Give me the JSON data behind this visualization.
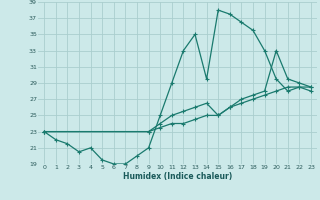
{
  "xlabel": "Humidex (Indice chaleur)",
  "bg_color": "#cce9e9",
  "grid_color": "#aacece",
  "line_color": "#1a7a6e",
  "xlim": [
    -0.5,
    23.5
  ],
  "ylim": [
    19,
    39
  ],
  "xticks": [
    0,
    1,
    2,
    3,
    4,
    5,
    6,
    7,
    8,
    9,
    10,
    11,
    12,
    13,
    14,
    15,
    16,
    17,
    18,
    19,
    20,
    21,
    22,
    23
  ],
  "yticks": [
    19,
    21,
    23,
    25,
    27,
    29,
    31,
    33,
    35,
    37,
    39
  ],
  "line1_x": [
    0,
    1,
    2,
    3,
    4,
    5,
    6,
    7,
    8,
    9,
    10,
    11,
    12,
    13,
    14,
    15,
    16,
    17,
    18,
    19,
    20,
    21,
    22,
    23
  ],
  "line1_y": [
    23,
    22,
    21.5,
    20.5,
    21,
    19.5,
    19,
    19,
    20,
    21,
    25,
    29,
    33,
    35,
    29.5,
    38,
    37.5,
    36.5,
    35.5,
    33,
    29.5,
    28,
    28.5,
    28.5
  ],
  "line2_x": [
    0,
    9,
    10,
    11,
    12,
    13,
    14,
    15,
    16,
    17,
    18,
    19,
    20,
    21,
    22,
    23
  ],
  "line2_y": [
    23,
    23,
    24,
    25,
    25.5,
    26,
    26.5,
    25,
    26,
    27,
    27.5,
    28,
    33,
    29.5,
    29,
    28.5
  ],
  "line3_x": [
    0,
    9,
    10,
    11,
    12,
    13,
    14,
    15,
    16,
    17,
    18,
    19,
    20,
    21,
    22,
    23
  ],
  "line3_y": [
    23,
    23,
    23.5,
    24,
    24,
    24.5,
    25,
    25,
    26,
    26.5,
    27,
    27.5,
    28,
    28.5,
    28.5,
    28
  ],
  "marker": "+"
}
